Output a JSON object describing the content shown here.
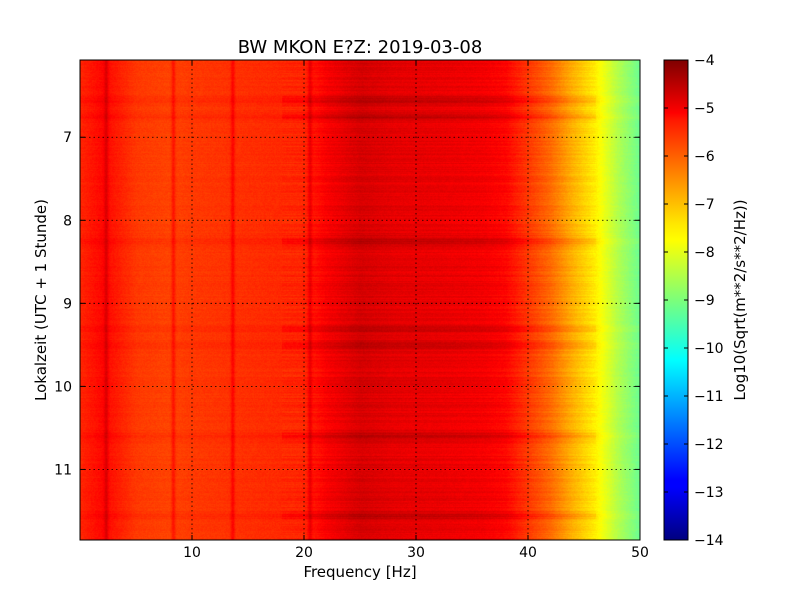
{
  "chart_data": {
    "type": "heatmap",
    "title": "BW MKON E?Z: 2019-03-08",
    "xlabel": "Frequency [Hz]",
    "ylabel": "Lokalzeit (UTC + 1 Stunde)",
    "xlim": [
      0,
      50
    ],
    "ylim": [
      11.85,
      6.07
    ],
    "y_axis_inverted": true,
    "x_ticks": [
      "10",
      "20",
      "30",
      "40",
      "50"
    ],
    "y_ticks": [
      "7",
      "8",
      "9",
      "10",
      "11"
    ],
    "grid": true,
    "colormap": "jet",
    "colorbar": {
      "label": "Log10(Sqrt(m**2/s**2/Hz))",
      "range": [
        -14,
        -4
      ],
      "ticks": [
        "-4",
        "-5",
        "-6",
        "-7",
        "-8",
        "-9",
        "-10",
        "-11",
        "-12",
        "-13",
        "-14"
      ]
    },
    "frequency_profile": {
      "frequency_hz": [
        0,
        2,
        5,
        8,
        10,
        15,
        20,
        22,
        25,
        28,
        32,
        36,
        38,
        40,
        42,
        44,
        46,
        48,
        50
      ],
      "log10_amplitude": [
        -5.6,
        -5.3,
        -5.8,
        -5.9,
        -5.8,
        -5.7,
        -5.6,
        -5.2,
        -4.85,
        -5.0,
        -5.05,
        -5.15,
        -5.3,
        -5.8,
        -6.3,
        -7.0,
        -7.6,
        -8.5,
        -9.2
      ]
    },
    "narrowband_lines_hz": [
      2.3,
      8.3,
      13.6,
      20.5
    ],
    "dark_time_bands_hour": [
      6.55,
      6.75,
      8.25,
      9.3,
      9.5,
      10.6,
      11.55
    ]
  }
}
